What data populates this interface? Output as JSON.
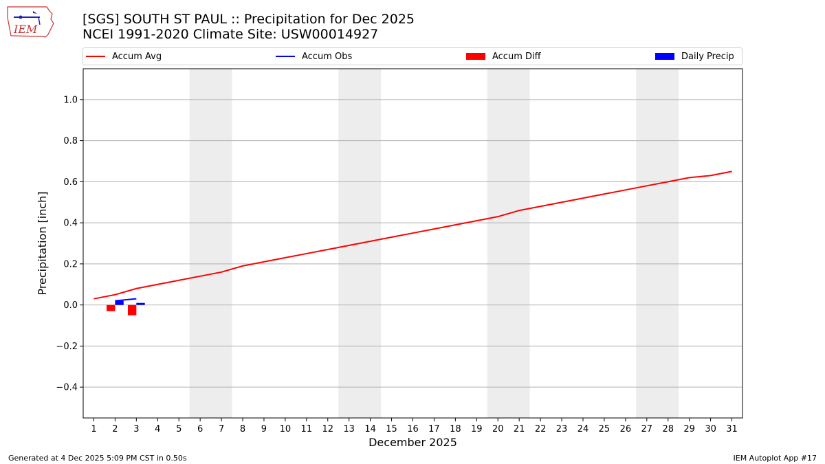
{
  "header": {
    "title_line1": "[SGS] SOUTH ST PAUL :: Precipitation for Dec 2025",
    "title_line2": "NCEI 1991-2020 Climate Site: USW00014927",
    "logo_text": "IEM"
  },
  "legend": [
    {
      "label": "Accum Avg",
      "color": "#ff0000",
      "kind": "line"
    },
    {
      "label": "Accum Obs",
      "color": "#0000ff",
      "kind": "line"
    },
    {
      "label": "Accum Diff",
      "color": "#ff0000",
      "kind": "box"
    },
    {
      "label": "Daily Precip",
      "color": "#0000ff",
      "kind": "box"
    }
  ],
  "footer": {
    "left": "Generated at 4 Dec 2025 5:09 PM CST in 0.50s",
    "right": "IEM Autoplot App #17"
  },
  "chart_data": {
    "type": "line",
    "title": "[SGS] SOUTH ST PAUL :: Precipitation for Dec 2025",
    "subtitle": "NCEI 1991-2020 Climate Site: USW00014927",
    "xlabel": "December 2025",
    "ylabel": "Precipitation [inch]",
    "xlim": [
      0.5,
      31.5
    ],
    "ylim": [
      -0.55,
      1.15
    ],
    "x_ticks": [
      1,
      2,
      3,
      4,
      5,
      6,
      7,
      8,
      9,
      10,
      11,
      12,
      13,
      14,
      15,
      16,
      17,
      18,
      19,
      20,
      21,
      22,
      23,
      24,
      25,
      26,
      27,
      28,
      29,
      30,
      31
    ],
    "y_ticks": [
      -0.4,
      -0.2,
      0.0,
      0.2,
      0.4,
      0.6,
      0.8,
      1.0
    ],
    "y_tick_labels": [
      "−0.4",
      "−0.2",
      "0.0",
      "0.2",
      "0.4",
      "0.6",
      "0.8",
      "1.0"
    ],
    "grid": "horizontal",
    "legend_position": "top",
    "weekend_shading": [
      [
        5.5,
        7.5
      ],
      [
        12.5,
        14.5
      ],
      [
        19.5,
        21.5
      ],
      [
        26.5,
        28.5
      ]
    ],
    "series": [
      {
        "name": "Accum Avg",
        "kind": "line",
        "color": "#ff0000",
        "x": [
          1,
          2,
          3,
          4,
          5,
          6,
          7,
          8,
          9,
          10,
          11,
          12,
          13,
          14,
          15,
          16,
          17,
          18,
          19,
          20,
          21,
          22,
          23,
          24,
          25,
          26,
          27,
          28,
          29,
          30,
          31
        ],
        "values": [
          0.03,
          0.05,
          0.08,
          0.1,
          0.12,
          0.14,
          0.16,
          0.19,
          0.21,
          0.23,
          0.25,
          0.27,
          0.29,
          0.31,
          0.33,
          0.35,
          0.37,
          0.39,
          0.41,
          0.43,
          0.46,
          0.48,
          0.5,
          0.52,
          0.54,
          0.56,
          0.58,
          0.6,
          0.62,
          0.63,
          0.65
        ]
      },
      {
        "name": "Accum Obs",
        "kind": "line",
        "color": "#0000ff",
        "x": [
          2,
          3
        ],
        "values": [
          0.02,
          0.03
        ]
      },
      {
        "name": "Accum Diff",
        "kind": "bar",
        "color": "#ff0000",
        "x": [
          1.8,
          2.8
        ],
        "values": [
          -0.03,
          -0.05
        ]
      },
      {
        "name": "Daily Precip",
        "kind": "bar",
        "color": "#0000ff",
        "x": [
          2.2,
          3.2
        ],
        "values": [
          0.02,
          0.01
        ]
      }
    ]
  }
}
